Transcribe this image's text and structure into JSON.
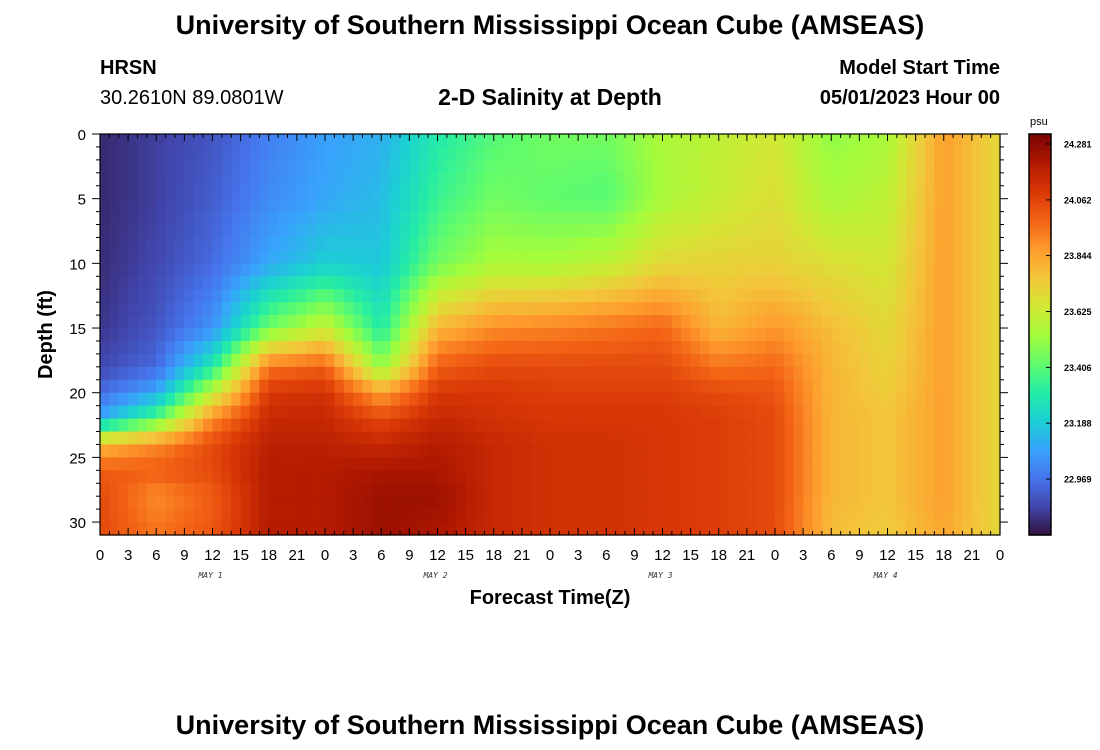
{
  "header": {
    "title": "University of Southern Mississippi Ocean Cube (AMSEAS)",
    "station_name": "HRSN",
    "station_coords": "30.2610N  89.0801W",
    "chart_title": "2-D Salinity at Depth",
    "model_start_label": "Model Start Time",
    "model_start_value": "05/01/2023 Hour 00"
  },
  "footer": {
    "title": "University of Southern Mississippi Ocean Cube (AMSEAS)"
  },
  "colors": {
    "turbo": [
      "#30123b",
      "#4145ab",
      "#4675ed",
      "#39a2fc",
      "#1bcfd4",
      "#24eca6",
      "#61fc6c",
      "#a4fc3b",
      "#d1e834",
      "#f3c63a",
      "#fe9b2d",
      "#f36315",
      "#d93806",
      "#b11901",
      "#7a0402"
    ]
  },
  "chart_data": {
    "type": "heatmap",
    "title": "2-D Salinity at Depth",
    "xlabel": "Forecast Time(Z)",
    "ylabel": "Depth (ft)",
    "x_tick_labels": [
      "0",
      "3",
      "6",
      "9",
      "12",
      "15",
      "18",
      "21",
      "0",
      "3",
      "6",
      "9",
      "12",
      "15",
      "18",
      "21",
      "0",
      "3",
      "6",
      "9",
      "12",
      "15",
      "18",
      "21",
      "0",
      "3",
      "6",
      "9",
      "12",
      "15",
      "18",
      "21",
      "0"
    ],
    "day_labels": [
      "MAY 1",
      "MAY 2",
      "MAY 3",
      "MAY 4"
    ],
    "xlim_hours": [
      0,
      96
    ],
    "y_tick_labels": [
      "0",
      "5",
      "10",
      "15",
      "20",
      "25",
      "30"
    ],
    "y_ticks": [
      0,
      5,
      10,
      15,
      20,
      25,
      30
    ],
    "ylim": [
      0,
      31
    ],
    "colorbar": {
      "unit": "psu",
      "min": 22.75,
      "max": 24.32,
      "tick_values": [
        24.281,
        24.062,
        23.844,
        23.625,
        23.406,
        23.188,
        22.969
      ],
      "tick_labels": [
        "24.281",
        "24.062",
        "23.844",
        "23.625",
        "23.406",
        "23.188",
        "22.969"
      ]
    },
    "profile_hours": [
      0,
      6,
      12,
      18,
      24,
      30,
      36,
      42,
      48,
      54,
      60,
      66,
      72,
      78,
      84,
      90,
      96
    ],
    "profile_depths": [
      0,
      5,
      10,
      15,
      18,
      20,
      22,
      24,
      26,
      28,
      31
    ],
    "salinity_psu": [
      [
        22.8,
        22.8,
        22.81,
        22.83,
        22.87,
        22.95,
        23.1,
        23.8,
        24.0,
        24.05,
        24.05
      ],
      [
        22.85,
        22.85,
        22.87,
        22.9,
        22.95,
        23.1,
        23.4,
        23.9,
        24.0,
        23.9,
        23.95
      ],
      [
        22.9,
        22.92,
        22.95,
        23.05,
        23.3,
        23.6,
        23.9,
        24.05,
        24.05,
        24.0,
        24.02
      ],
      [
        23.0,
        23.03,
        23.1,
        23.45,
        23.95,
        24.1,
        24.15,
        24.18,
        24.2,
        24.2,
        24.2
      ],
      [
        23.08,
        23.1,
        23.2,
        23.62,
        24.0,
        24.12,
        24.15,
        24.18,
        24.2,
        24.2,
        24.2
      ],
      [
        23.12,
        23.15,
        23.18,
        23.3,
        23.5,
        23.85,
        24.05,
        24.15,
        24.22,
        24.25,
        24.25
      ],
      [
        23.3,
        23.35,
        23.45,
        23.8,
        24.0,
        24.1,
        24.15,
        24.2,
        24.22,
        24.25,
        24.22
      ],
      [
        23.4,
        23.45,
        23.55,
        23.9,
        24.05,
        24.1,
        24.12,
        24.15,
        24.15,
        24.15,
        24.15
      ],
      [
        23.45,
        23.42,
        23.55,
        23.92,
        24.05,
        24.08,
        24.1,
        24.12,
        24.12,
        24.12,
        24.12
      ],
      [
        23.45,
        23.4,
        23.6,
        23.95,
        24.05,
        24.08,
        24.1,
        24.12,
        24.12,
        24.12,
        24.12
      ],
      [
        23.55,
        23.55,
        23.7,
        23.98,
        24.05,
        24.08,
        24.1,
        24.1,
        24.1,
        24.1,
        24.1
      ],
      [
        23.6,
        23.62,
        23.72,
        23.8,
        23.95,
        24.05,
        24.08,
        24.08,
        24.08,
        24.08,
        24.08
      ],
      [
        23.65,
        23.68,
        23.72,
        23.88,
        23.98,
        24.02,
        24.05,
        24.05,
        24.05,
        24.05,
        24.05
      ],
      [
        23.5,
        23.55,
        23.68,
        23.78,
        23.8,
        23.8,
        23.8,
        23.8,
        23.8,
        23.8,
        23.78
      ],
      [
        23.55,
        23.6,
        23.65,
        23.7,
        23.72,
        23.74,
        23.76,
        23.76,
        23.76,
        23.76,
        23.74
      ],
      [
        23.86,
        23.86,
        23.86,
        23.86,
        23.86,
        23.86,
        23.86,
        23.86,
        23.86,
        23.86,
        23.84
      ],
      [
        23.7,
        23.7,
        23.7,
        23.7,
        23.7,
        23.7,
        23.7,
        23.7,
        23.7,
        23.7,
        23.7
      ]
    ]
  }
}
